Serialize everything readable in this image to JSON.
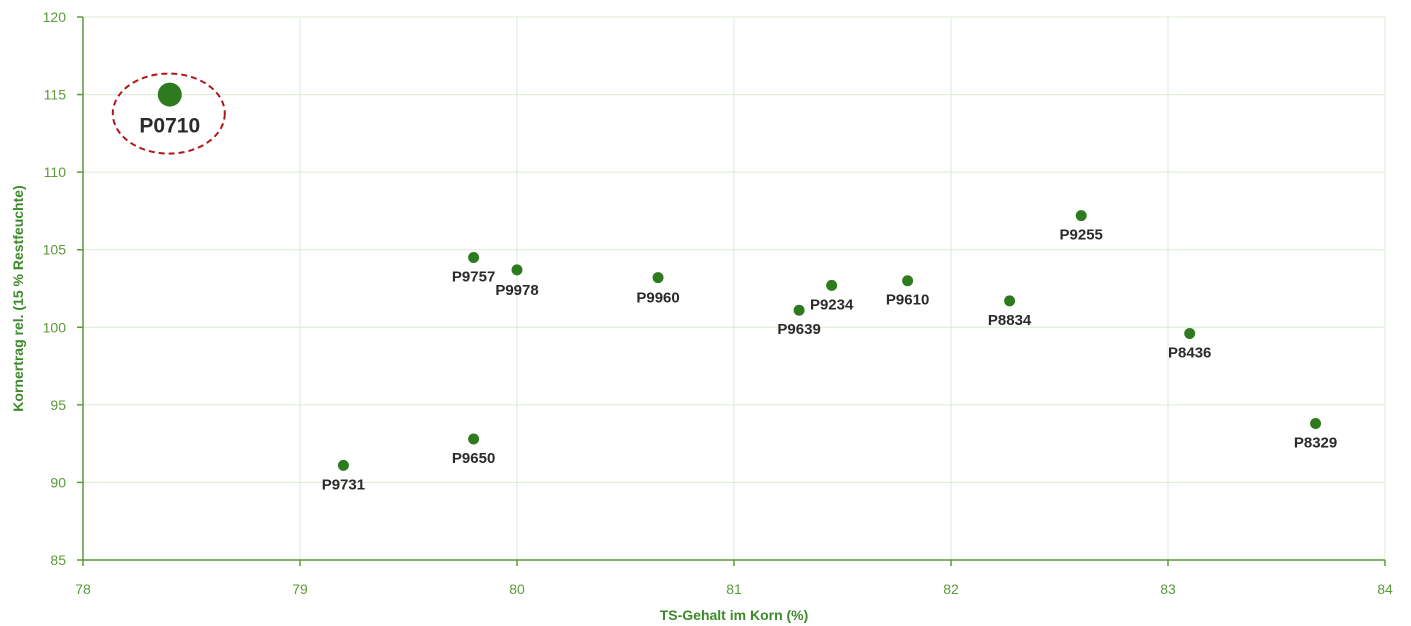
{
  "chart_data": {
    "type": "scatter",
    "xlabel": "TS-Gehalt im Korn (%)",
    "ylabel": "Kornertrag rel. (15 % Restfeuchte)",
    "xlim": [
      78,
      84
    ],
    "ylim": [
      85,
      120
    ],
    "xticks": [
      "78",
      "79",
      "80",
      "81",
      "82",
      "83",
      "84"
    ],
    "yticks": [
      "85",
      "90",
      "95",
      "100",
      "105",
      "110",
      "115",
      "120"
    ],
    "grid": true,
    "points": [
      {
        "label": "P0710",
        "x": 78.4,
        "y": 115.0,
        "highlight": true
      },
      {
        "label": "P9757",
        "x": 79.8,
        "y": 104.5
      },
      {
        "label": "P9978",
        "x": 80.0,
        "y": 103.7
      },
      {
        "label": "P9960",
        "x": 80.65,
        "y": 103.2
      },
      {
        "label": "P9234",
        "x": 81.45,
        "y": 102.7
      },
      {
        "label": "P9639",
        "x": 81.3,
        "y": 101.1
      },
      {
        "label": "P9610",
        "x": 81.8,
        "y": 103.0
      },
      {
        "label": "P8834",
        "x": 82.27,
        "y": 101.7
      },
      {
        "label": "P9255",
        "x": 82.6,
        "y": 107.2
      },
      {
        "label": "P8436",
        "x": 83.1,
        "y": 99.6
      },
      {
        "label": "P8329",
        "x": 83.68,
        "y": 93.8
      },
      {
        "label": "P9731",
        "x": 79.2,
        "y": 91.1
      },
      {
        "label": "P9650",
        "x": 79.8,
        "y": 92.8
      }
    ],
    "colors": {
      "point": "#2e7a1f",
      "axis": "#5a9a3a",
      "tick_text": "#5a9a3a",
      "axis_title": "#3d8a2a",
      "grid": "#dcebd4",
      "label_text": "#2b2b2b",
      "highlight_ring": "#b01818"
    }
  }
}
